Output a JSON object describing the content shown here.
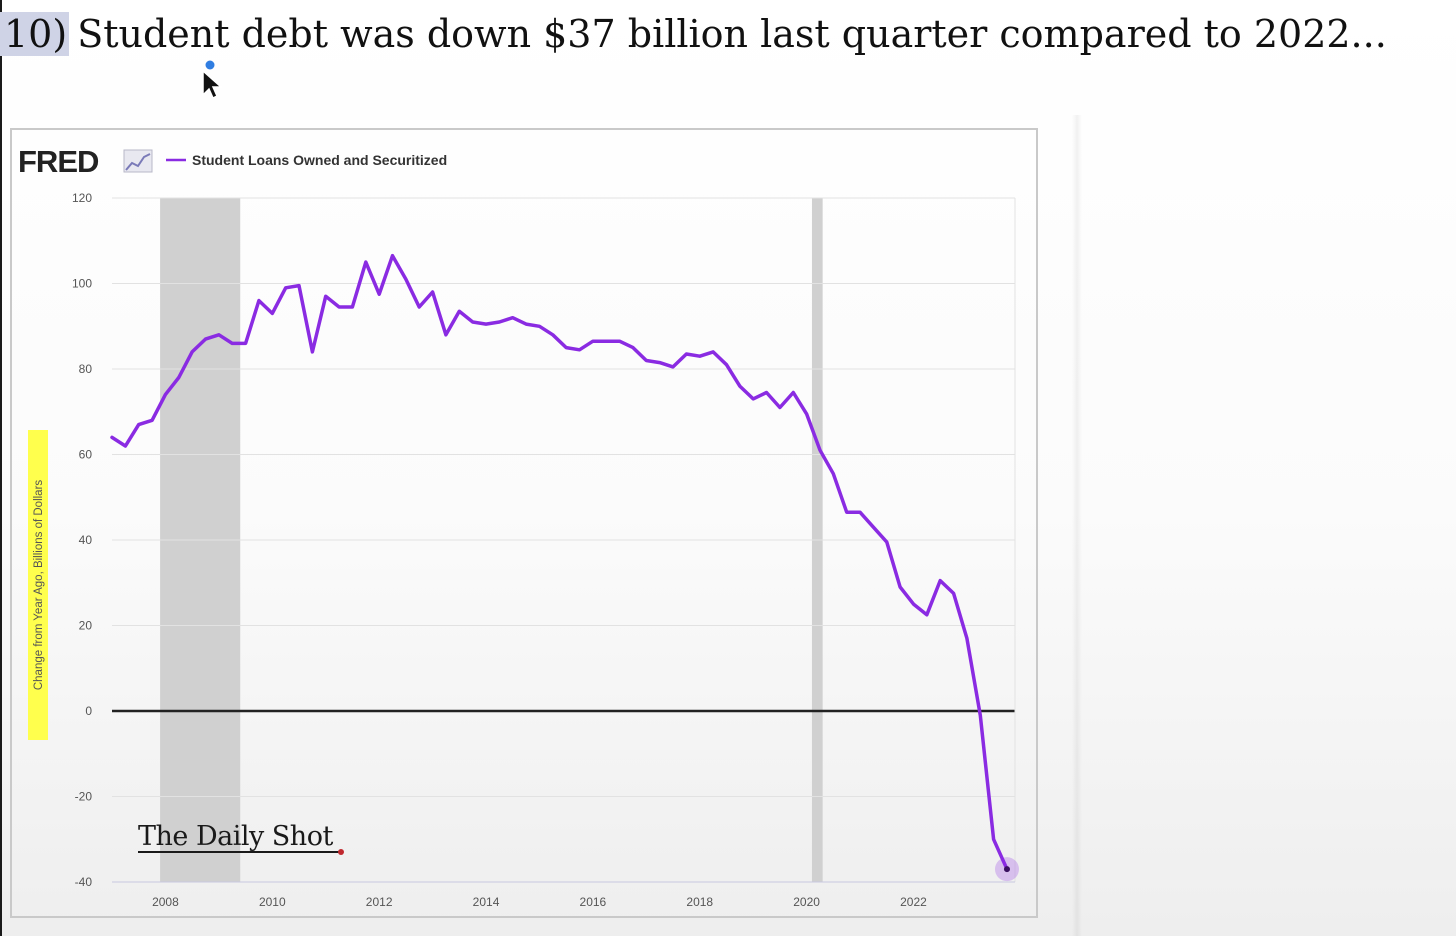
{
  "heading": {
    "number": "10)",
    "text": "Student debt was down $37 billion last quarter compared to 2022..."
  },
  "colors": {
    "series": "#8a2be2",
    "recession_band": "#d0d0d0",
    "highlight": "#ffff4d",
    "zero_line": "#222222"
  },
  "chart_data": {
    "type": "line",
    "source_logo": "FRED",
    "watermark": "The Daily Shot",
    "ylabel": "Change from Year Ago, Billions of Dollars",
    "ylabel_highlighted": true,
    "ylim": [
      -40,
      120
    ],
    "xlim": [
      2007.0,
      2023.9
    ],
    "y_ticks": [
      -40,
      -20,
      0,
      20,
      40,
      60,
      80,
      100,
      120
    ],
    "x_ticks": [
      2008,
      2010,
      2012,
      2014,
      2016,
      2018,
      2020,
      2022
    ],
    "grid": true,
    "legend_position": "top-left",
    "recession_bands": [
      [
        2007.9,
        2009.4
      ],
      [
        2020.1,
        2020.3
      ]
    ],
    "series": [
      {
        "name": "Student Loans Owned and Securitized",
        "x": [
          2007.0,
          2007.25,
          2007.5,
          2007.75,
          2008.0,
          2008.25,
          2008.5,
          2008.75,
          2009.0,
          2009.25,
          2009.5,
          2009.75,
          2010.0,
          2010.25,
          2010.5,
          2010.75,
          2011.0,
          2011.25,
          2011.5,
          2011.75,
          2012.0,
          2012.25,
          2012.5,
          2012.75,
          2013.0,
          2013.25,
          2013.5,
          2013.75,
          2014.0,
          2014.25,
          2014.5,
          2014.75,
          2015.0,
          2015.25,
          2015.5,
          2015.75,
          2016.0,
          2016.25,
          2016.5,
          2016.75,
          2017.0,
          2017.25,
          2017.5,
          2017.75,
          2018.0,
          2018.25,
          2018.5,
          2018.75,
          2019.0,
          2019.25,
          2019.5,
          2019.75,
          2020.0,
          2020.25,
          2020.5,
          2020.75,
          2021.0,
          2021.25,
          2021.5,
          2021.75,
          2022.0,
          2022.25,
          2022.5,
          2022.75,
          2023.0,
          2023.25,
          2023.5,
          2023.75
        ],
        "y": [
          64,
          62,
          67,
          68,
          74,
          78,
          84,
          87,
          88,
          86,
          86,
          96,
          93,
          99,
          99.5,
          84,
          97,
          94.5,
          94.5,
          105,
          97.5,
          106.5,
          101,
          94.5,
          98,
          88,
          93.5,
          91,
          90.5,
          91,
          92,
          90.5,
          90,
          88,
          85,
          84.5,
          86.5,
          86.5,
          86.5,
          85,
          82,
          81.5,
          80.5,
          83.5,
          83,
          84,
          81,
          76,
          73,
          74.5,
          71,
          74.5,
          69.5,
          61,
          55.5,
          46.5,
          46.5,
          43,
          39.5,
          29,
          25,
          22.5,
          30.5,
          27.5,
          17,
          -1,
          -30,
          -37
        ]
      }
    ]
  }
}
